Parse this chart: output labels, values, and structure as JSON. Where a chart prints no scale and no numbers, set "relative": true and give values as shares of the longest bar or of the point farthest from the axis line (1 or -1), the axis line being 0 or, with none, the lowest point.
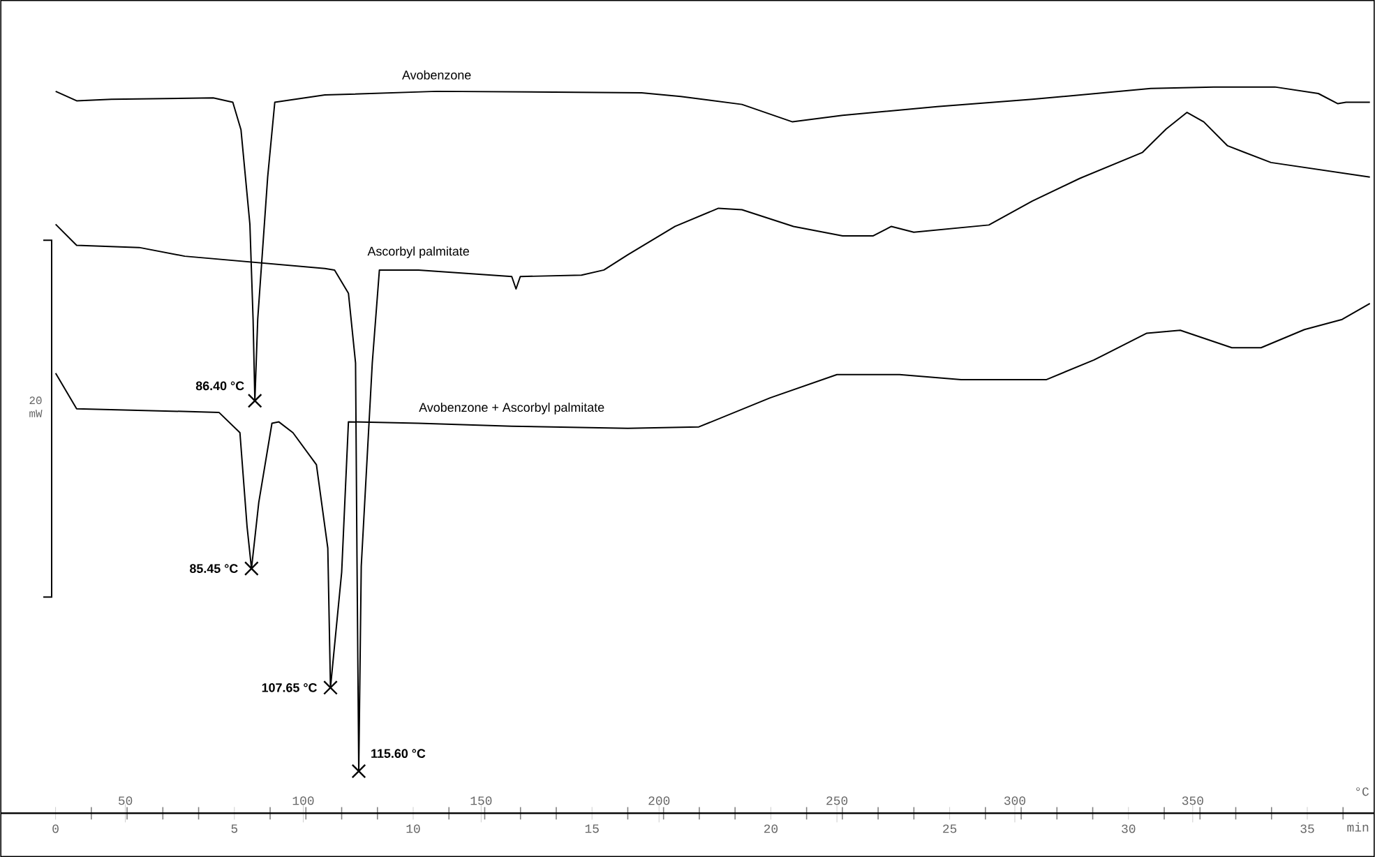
{
  "chart_data": {
    "type": "line",
    "relative": true,
    "xlabel": "°C",
    "x2label": "min",
    "xlim": [
      15,
      401
    ],
    "xticks": [
      50,
      100,
      150,
      200,
      250,
      300,
      350
    ],
    "x2lim": [
      -1.53,
      36.87
    ],
    "x2ticks": [
      0,
      {
        "value": 1,
        "label": null
      },
      {
        "value": 2,
        "label": null
      },
      {
        "value": 3,
        "label": null
      },
      {
        "value": 4,
        "label": null
      },
      5,
      {
        "value": 6,
        "label": null
      },
      {
        "value": 7,
        "label": null
      },
      {
        "value": 8,
        "label": null
      },
      {
        "value": 9,
        "label": null
      },
      10,
      {
        "value": 11,
        "label": null
      },
      {
        "value": 12,
        "label": null
      },
      {
        "value": 13,
        "label": null
      },
      {
        "value": 14,
        "label": null
      },
      15,
      {
        "value": 16,
        "label": null
      },
      {
        "value": 17,
        "label": null
      },
      {
        "value": 18,
        "label": null
      },
      {
        "value": 19,
        "label": null
      },
      20,
      {
        "value": 21,
        "label": null
      },
      {
        "value": 22,
        "label": null
      },
      {
        "value": 23,
        "label": null
      },
      {
        "value": 24,
        "label": null
      },
      25,
      {
        "value": 26,
        "label": null
      },
      {
        "value": 27,
        "label": null
      },
      {
        "value": 28,
        "label": null
      },
      {
        "value": 29,
        "label": null
      },
      30,
      {
        "value": 31,
        "label": null
      },
      {
        "value": 32,
        "label": null
      },
      {
        "value": 33,
        "label": null
      },
      {
        "value": 34,
        "label": null
      },
      35,
      {
        "value": 36,
        "label": null
      }
    ],
    "series": [
      {
        "name": "Avobenzone",
        "color": "#000000",
        "x": [
          30.4,
          36.3,
          46.1,
          74.7,
          80.2,
          82.5,
          85.0,
          85.9,
          86.4,
          87.2,
          90.0,
          92.0,
          106.1,
          137.5,
          195.1,
          206.1,
          223.3,
          237.5,
          251.6,
          278.2,
          304.9,
          338.2,
          355.9,
          373.1,
          385.3,
          390.8,
          393.1,
          399.8
        ],
        "values": [
          0.994,
          0.981,
          0.983,
          0.985,
          0.979,
          0.941,
          0.811,
          0.68,
          0.568,
          0.68,
          0.876,
          0.979,
          0.989,
          0.994,
          0.992,
          0.987,
          0.976,
          0.952,
          0.961,
          0.973,
          0.983,
          0.998,
          1.0,
          1.0,
          0.991,
          0.977,
          0.979,
          0.979
        ]
      },
      {
        "name": "Ascorbyl palmitate",
        "color": "#000000",
        "x": [
          30.4,
          36.3,
          53.9,
          66.7,
          106.1,
          108.8,
          112.7,
          114.7,
          115.1,
          115.6,
          116.3,
          119.4,
          121.4,
          132.4,
          158.6,
          159.8,
          161.0,
          178.2,
          184.5,
          191.2,
          204.5,
          216.7,
          223.3,
          237.8,
          251.6,
          260.2,
          265.3,
          271.6,
          292.7,
          304.9,
          318.2,
          335.9,
          342.5,
          348.4,
          353.1,
          359.8,
          372.0,
          399.8
        ],
        "values": [
          0.811,
          0.782,
          0.779,
          0.767,
          0.75,
          0.748,
          0.716,
          0.62,
          0.352,
          0.058,
          0.34,
          0.62,
          0.748,
          0.748,
          0.739,
          0.722,
          0.739,
          0.741,
          0.748,
          0.769,
          0.808,
          0.833,
          0.831,
          0.808,
          0.795,
          0.795,
          0.808,
          0.8,
          0.81,
          0.843,
          0.874,
          0.91,
          0.942,
          0.965,
          0.952,
          0.919,
          0.896,
          0.876
        ]
      },
      {
        "name": "Avobenzone + Ascorbyl palmitate",
        "color": "#000000",
        "x": [
          30.4,
          36.3,
          76.3,
          82.2,
          84.2,
          85.45,
          87.5,
          91.2,
          93.1,
          97.1,
          103.7,
          106.9,
          107.65,
          110.8,
          112.7,
          132.4,
          158.6,
          191.2,
          211.2,
          231.2,
          250.0,
          267.6,
          284.9,
          308.8,
          322.2,
          337.1,
          346.5,
          361.0,
          369.2,
          381.4,
          392.0,
          399.8
        ],
        "values": [
          0.606,
          0.557,
          0.552,
          0.524,
          0.395,
          0.337,
          0.428,
          0.537,
          0.539,
          0.524,
          0.48,
          0.365,
          0.173,
          0.332,
          0.539,
          0.537,
          0.533,
          0.53,
          0.532,
          0.572,
          0.604,
          0.604,
          0.597,
          0.597,
          0.624,
          0.661,
          0.665,
          0.641,
          0.641,
          0.666,
          0.68,
          0.702
        ]
      }
    ],
    "annotations": [
      {
        "text": "86.40 °C",
        "x": 86.4,
        "y": 0.568
      },
      {
        "text": "85.45 °C",
        "x": 85.45,
        "y": 0.337
      },
      {
        "text": "107.65 °C",
        "x": 107.65,
        "y": 0.173
      },
      {
        "text": "115.60 °C",
        "x": 115.6,
        "y": 0.058
      },
      "20 mW"
    ]
  }
}
